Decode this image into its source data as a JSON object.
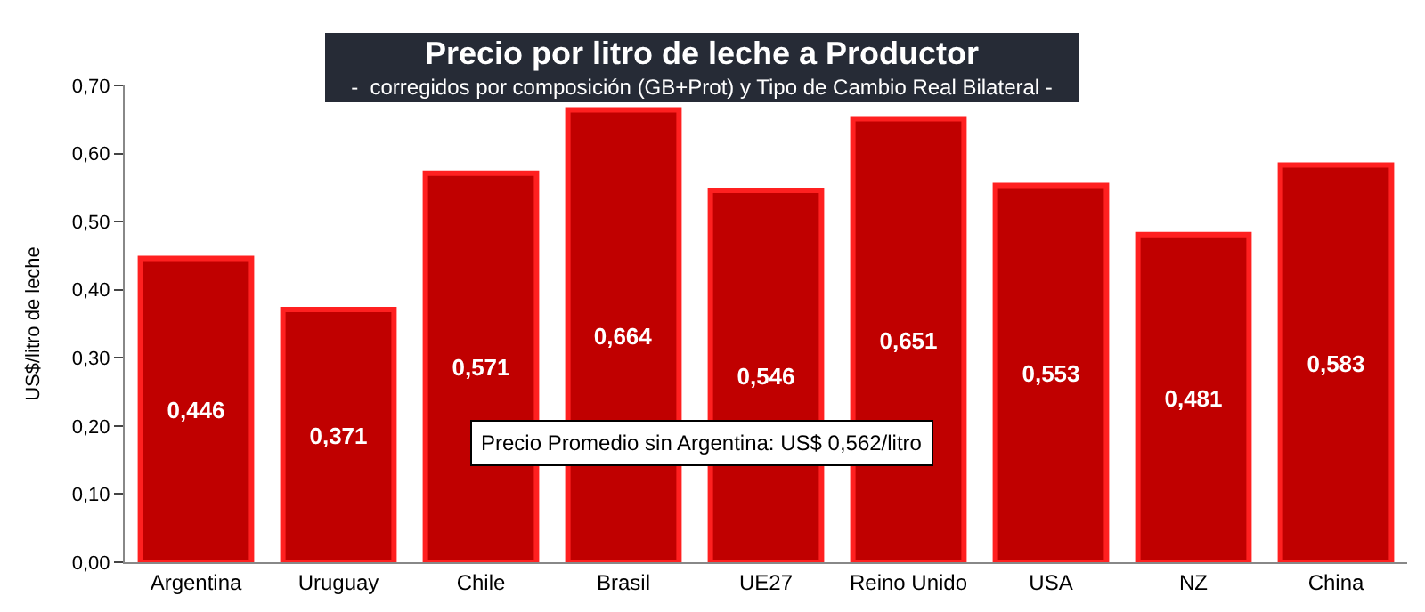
{
  "chart_data": {
    "type": "bar",
    "title": "Precio por litro de leche a Productor",
    "subtitle": "-  corregidos por composición (GB+Prot) y Tipo de Cambio Real Bilateral -",
    "ylabel": "US$/litro de leche",
    "categories": [
      "Argentina",
      "Uruguay",
      "Chile",
      "Brasil",
      "UE27",
      "Reino Unido",
      "USA",
      "NZ",
      "China"
    ],
    "values": [
      0.446,
      0.371,
      0.571,
      0.664,
      0.546,
      0.651,
      0.553,
      0.481,
      0.583
    ],
    "value_labels": [
      "0,446",
      "0,371",
      "0,571",
      "0,664",
      "0,546",
      "0,651",
      "0,553",
      "0,481",
      "0,583"
    ],
    "color": "#c00000",
    "ylim": [
      0,
      0.7
    ],
    "yticks": [
      {
        "value": 0,
        "label": "0,00"
      },
      {
        "value": 0.1,
        "label": "0,10"
      },
      {
        "value": 0.2,
        "label": "0,20"
      },
      {
        "value": 0.3,
        "label": "0,30"
      },
      {
        "value": 0.4,
        "label": "0,40"
      },
      {
        "value": 0.5,
        "label": "0,50"
      },
      {
        "value": 0.6,
        "label": "0,60"
      },
      {
        "value": 0.7,
        "label": "0,70"
      }
    ],
    "annotations": [
      "Precio Promedio sin Argentina: US$ 0,562/litro"
    ]
  }
}
